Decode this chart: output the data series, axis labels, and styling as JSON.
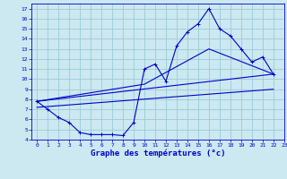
{
  "title": "Graphe des températures (°c)",
  "bg_color": "#cce8f0",
  "grid_color": "#99ccd9",
  "line_color": "#0000cc",
  "xlim": [
    -0.5,
    23
  ],
  "ylim": [
    4,
    17.5
  ],
  "xtick_labels": [
    "0",
    "1",
    "2",
    "3",
    "4",
    "5",
    "6",
    "7",
    "8",
    "9",
    "10",
    "11",
    "12",
    "13",
    "14",
    "15",
    "16",
    "17",
    "18",
    "19",
    "20",
    "21",
    "22",
    "23"
  ],
  "xtick_vals": [
    0,
    1,
    2,
    3,
    4,
    5,
    6,
    7,
    8,
    9,
    10,
    11,
    12,
    13,
    14,
    15,
    16,
    17,
    18,
    19,
    20,
    21,
    22,
    23
  ],
  "ytick_vals": [
    4,
    5,
    6,
    7,
    8,
    9,
    10,
    11,
    12,
    13,
    14,
    15,
    16,
    17
  ],
  "series1_x": [
    0,
    1,
    2,
    3,
    4,
    5,
    6,
    7,
    8,
    9,
    10,
    11,
    12,
    13,
    14,
    15,
    16,
    17,
    18,
    19,
    20,
    21,
    22
  ],
  "series1_y": [
    7.8,
    7.0,
    6.2,
    5.7,
    4.7,
    4.5,
    4.5,
    4.5,
    4.4,
    5.7,
    11.0,
    11.5,
    9.8,
    13.3,
    14.7,
    15.5,
    17.0,
    15.0,
    14.3,
    13.0,
    11.7,
    12.2,
    10.5
  ],
  "series2_x": [
    0,
    22
  ],
  "series2_y": [
    7.8,
    10.5
  ],
  "series3_x": [
    0,
    10,
    16,
    22
  ],
  "series3_y": [
    7.8,
    9.5,
    13.0,
    10.5
  ],
  "series4_x": [
    0,
    22
  ],
  "series4_y": [
    7.2,
    9.0
  ],
  "xlabel_fontsize": 6.5,
  "tick_fontsize": 4.5
}
